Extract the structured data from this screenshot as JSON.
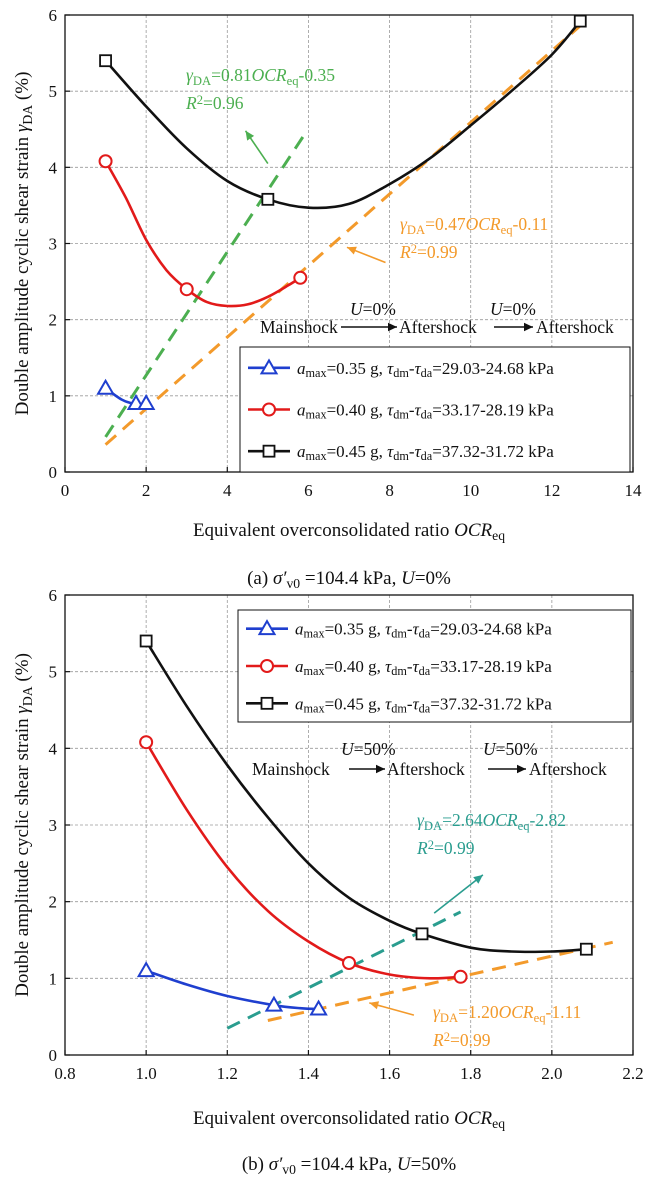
{
  "chart_data": [
    {
      "type": "scatter",
      "caption": {
        "label": "(a)",
        "sigma": "σ′",
        "sigma_sub": "v0",
        "rest": " =104.4 kPa, ",
        "u": "U",
        "u_val": "=0%"
      },
      "xlabel": {
        "text": "Equivalent overconsolidated ratio ",
        "italic": "OCR",
        "sub": "eq"
      },
      "ylabel": {
        "text": "Double amplitude cyclic shear strain ",
        "italic": "γ",
        "sub": "DA",
        "unit": " (%)"
      },
      "xlim": [
        0,
        14
      ],
      "ylim": [
        0,
        6
      ],
      "xticks": [
        0,
        2,
        4,
        6,
        8,
        10,
        12,
        14
      ],
      "xtick_labels": [
        "0",
        "2",
        "4",
        "6",
        "8",
        "10",
        "12",
        "14"
      ],
      "yticks": [
        0,
        1,
        2,
        3,
        4,
        5,
        6
      ],
      "ytick_labels": [
        "0",
        "1",
        "2",
        "3",
        "4",
        "5",
        "6"
      ],
      "grid": true,
      "legend_position": "lower-right",
      "series": [
        {
          "name_parts": [
            "a",
            "max",
            "=0.35 g, ",
            "τ",
            "dm",
            "-",
            "τ",
            "da",
            "=29.03-24.68 kPa"
          ],
          "color": "#1f3fcf",
          "marker": "triangle",
          "points": [
            [
              1.0,
              1.1
            ],
            [
              1.75,
              0.9
            ],
            [
              2.0,
              0.9
            ]
          ],
          "curve": [
            [
              1.0,
              1.1
            ],
            [
              1.4,
              0.95
            ],
            [
              1.75,
              0.89
            ],
            [
              2.0,
              0.9
            ]
          ]
        },
        {
          "name_parts": [
            "a",
            "max",
            "=0.40 g, ",
            "τ",
            "dm",
            "-",
            "τ",
            "da",
            "=33.17-28.19 kPa"
          ],
          "color": "#e21a1a",
          "marker": "circle",
          "points": [
            [
              1.0,
              4.08
            ],
            [
              3.0,
              2.4
            ],
            [
              5.8,
              2.55
            ]
          ],
          "curve": [
            [
              1.0,
              4.08
            ],
            [
              1.5,
              3.6
            ],
            [
              2.0,
              3.05
            ],
            [
              2.5,
              2.65
            ],
            [
              3.0,
              2.4
            ],
            [
              3.5,
              2.23
            ],
            [
              4.0,
              2.18
            ],
            [
              4.5,
              2.2
            ],
            [
              5.0,
              2.3
            ],
            [
              5.5,
              2.45
            ],
            [
              5.8,
              2.55
            ]
          ]
        },
        {
          "name_parts": [
            "a",
            "max",
            "=0.45 g, ",
            "τ",
            "dm",
            "-",
            "τ",
            "da",
            "=37.32-31.72 kPa"
          ],
          "color": "#111111",
          "marker": "square",
          "points": [
            [
              1.0,
              5.4
            ],
            [
              5.0,
              3.58
            ],
            [
              12.7,
              5.92
            ]
          ],
          "curve": [
            [
              1.0,
              5.4
            ],
            [
              2.0,
              4.8
            ],
            [
              3.0,
              4.25
            ],
            [
              4.0,
              3.82
            ],
            [
              5.0,
              3.58
            ],
            [
              6.0,
              3.47
            ],
            [
              7.0,
              3.52
            ],
            [
              8.0,
              3.78
            ],
            [
              9.0,
              4.12
            ],
            [
              10.0,
              4.55
            ],
            [
              11.0,
              5.0
            ],
            [
              12.0,
              5.48
            ],
            [
              12.7,
              5.92
            ]
          ]
        }
      ],
      "fits": [
        {
          "color": "#4caf50",
          "slope": 0.81,
          "intercept": -0.35,
          "x_range": [
            1.0,
            5.9
          ],
          "eq": {
            "sym": "γ",
            "sub": "DA",
            "mid": "=0.81",
            "var": "OCR",
            "vsub": "eq",
            "tail": "-0.35"
          },
          "r2": {
            "sym": "R",
            "sup": "2",
            "val": "=0.96"
          },
          "arrow": [
            [
              5.0,
              4.05
            ],
            [
              4.45,
              4.48
            ]
          ]
        },
        {
          "color": "#f39a2b",
          "slope": 0.47,
          "intercept": -0.11,
          "x_range": [
            1.0,
            12.7
          ],
          "eq": {
            "sym": "γ",
            "sub": "DA",
            "mid": "=0.47",
            "var": "OCR",
            "vsub": "eq",
            "tail": "-0.11"
          },
          "r2": {
            "sym": "R",
            "sup": "2",
            "val": "=0.99"
          },
          "arrow": [
            [
              7.9,
              2.75
            ],
            [
              6.95,
              2.95
            ]
          ]
        }
      ],
      "flow": {
        "stages": [
          "Mainshock",
          "Aftershock",
          "Aftershock"
        ],
        "u_labels": [
          {
            "sym": "U",
            "val": "=0%"
          },
          {
            "sym": "U",
            "val": "=0%"
          }
        ]
      }
    },
    {
      "type": "scatter",
      "caption": {
        "label": "(b)",
        "sigma": "σ′",
        "sigma_sub": "v0",
        "rest": " =104.4 kPa, ",
        "u": "U",
        "u_val": "=50%"
      },
      "xlabel": {
        "text": "Equivalent overconsolidated ratio ",
        "italic": "OCR",
        "sub": "eq"
      },
      "ylabel": {
        "text": "Double amplitude cyclic shear strain ",
        "italic": "γ",
        "sub": "DA",
        "unit": " (%)"
      },
      "xlim": [
        0.8,
        2.2
      ],
      "ylim": [
        0,
        6
      ],
      "xticks": [
        0.8,
        1.0,
        1.2,
        1.4,
        1.6,
        1.8,
        2.0,
        2.2
      ],
      "xtick_labels": [
        "0.8",
        "1.0",
        "1.2",
        "1.4",
        "1.6",
        "1.8",
        "2.0",
        "2.2"
      ],
      "yticks": [
        0,
        1,
        2,
        3,
        4,
        5,
        6
      ],
      "ytick_labels": [
        "0",
        "1",
        "2",
        "3",
        "4",
        "5",
        "6"
      ],
      "grid": true,
      "legend_position": "top-right",
      "series": [
        {
          "name_parts": [
            "a",
            "max",
            "=0.35 g, ",
            "τ",
            "dm",
            "-",
            "τ",
            "da",
            "=29.03-24.68 kPa"
          ],
          "color": "#1f3fcf",
          "marker": "triangle",
          "points": [
            [
              1.0,
              1.1
            ],
            [
              1.315,
              0.65
            ],
            [
              1.425,
              0.6
            ]
          ],
          "curve": [
            [
              1.0,
              1.1
            ],
            [
              1.1,
              0.92
            ],
            [
              1.2,
              0.77
            ],
            [
              1.315,
              0.65
            ],
            [
              1.38,
              0.61
            ],
            [
              1.425,
              0.6
            ]
          ]
        },
        {
          "name_parts": [
            "a",
            "max",
            "=0.40 g, ",
            "τ",
            "dm",
            "-",
            "τ",
            "da",
            "=33.17-28.19 kPa"
          ],
          "color": "#e21a1a",
          "marker": "circle",
          "points": [
            [
              1.0,
              4.08
            ],
            [
              1.5,
              1.2
            ],
            [
              1.775,
              1.02
            ]
          ],
          "curve": [
            [
              1.0,
              4.08
            ],
            [
              1.1,
              3.2
            ],
            [
              1.2,
              2.45
            ],
            [
              1.3,
              1.88
            ],
            [
              1.4,
              1.48
            ],
            [
              1.5,
              1.2
            ],
            [
              1.6,
              1.05
            ],
            [
              1.7,
              1.0
            ],
            [
              1.775,
              1.02
            ]
          ]
        },
        {
          "name_parts": [
            "a",
            "max",
            "=0.45 g, ",
            "τ",
            "dm",
            "-",
            "τ",
            "da",
            "=37.32-31.72 kPa"
          ],
          "color": "#111111",
          "marker": "square",
          "points": [
            [
              1.0,
              5.4
            ],
            [
              1.68,
              1.58
            ],
            [
              2.085,
              1.38
            ]
          ],
          "curve": [
            [
              1.0,
              5.4
            ],
            [
              1.1,
              4.55
            ],
            [
              1.2,
              3.78
            ],
            [
              1.3,
              3.1
            ],
            [
              1.4,
              2.5
            ],
            [
              1.5,
              2.05
            ],
            [
              1.6,
              1.75
            ],
            [
              1.68,
              1.58
            ],
            [
              1.8,
              1.4
            ],
            [
              1.9,
              1.35
            ],
            [
              2.0,
              1.35
            ],
            [
              2.085,
              1.38
            ]
          ]
        }
      ],
      "fits": [
        {
          "color": "#2a9d8f",
          "slope": 2.64,
          "intercept": -2.82,
          "x_range": [
            1.2,
            1.775
          ],
          "eq": {
            "sym": "γ",
            "sub": "DA",
            "mid": "=2.64",
            "var": "OCR",
            "vsub": "eq",
            "tail": "-2.82"
          },
          "r2": {
            "sym": "R",
            "sup": "2",
            "val": "=0.99"
          },
          "arrow": [
            [
              1.71,
              1.85
            ],
            [
              1.83,
              2.35
            ]
          ]
        },
        {
          "color": "#f39a2b",
          "slope": 1.2,
          "intercept": -1.11,
          "x_range": [
            1.3,
            2.15
          ],
          "eq": {
            "sym": "γ",
            "sub": "DA",
            "mid": "=1.20",
            "var": "OCR",
            "vsub": "eq",
            "tail": "-1.11"
          },
          "r2": {
            "sym": "R",
            "sup": "2",
            "val": "=0.99"
          },
          "arrow": [
            [
              1.66,
              0.52
            ],
            [
              1.55,
              0.68
            ]
          ]
        }
      ],
      "flow": {
        "stages": [
          "Mainshock",
          "Aftershock",
          "Aftershock"
        ],
        "u_labels": [
          {
            "sym": "U",
            "val": "=50%"
          },
          {
            "sym": "U",
            "val": "=50%"
          }
        ]
      }
    }
  ]
}
